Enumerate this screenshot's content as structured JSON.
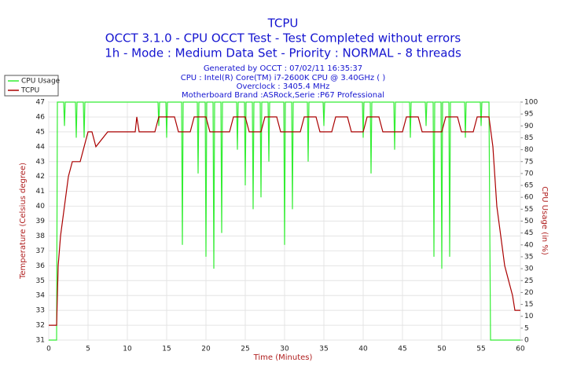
{
  "chart_data": {
    "type": "line",
    "title": "TCPU",
    "subtitle": "OCCT 3.1.0 - CPU OCCT Test - Test Completed without errors",
    "subtitle2": "1h - Mode : Medium Data Set - Priority : NORMAL - 8 threads",
    "info": [
      "Generated by OCCT : 07/02/11 16:35:37",
      "CPU : Intel(R) Core(TM) i7-2600K CPU @ 3.40GHz (  )",
      "Overclock : 3405.4 MHz",
      "Motherboard Brand :ASRock,Serie :P67 Professional"
    ],
    "xlabel": "Time (Minutes)",
    "ylabel": "Temperature (Celsius degree)",
    "y2label": "CPU Usage (in %)",
    "xlim": [
      0,
      60
    ],
    "xticks": [
      0,
      5,
      10,
      15,
      20,
      25,
      30,
      35,
      40,
      45,
      50,
      55,
      60
    ],
    "ylim": [
      31,
      47
    ],
    "yticks": [
      31,
      32,
      33,
      34,
      35,
      36,
      37,
      38,
      39,
      40,
      41,
      42,
      43,
      44,
      45,
      46,
      47
    ],
    "y2lim": [
      0,
      100
    ],
    "y2ticks": [
      0,
      5,
      10,
      15,
      20,
      25,
      30,
      35,
      40,
      45,
      50,
      55,
      60,
      65,
      70,
      75,
      80,
      85,
      90,
      95,
      100
    ],
    "grid": true,
    "legend": "top-left",
    "series": [
      {
        "name": "CPU Usage",
        "color": "#33ee33",
        "axis": "y2",
        "x": [
          0,
          1,
          1.1,
          1.9,
          2,
          2.1,
          3.4,
          3.5,
          3.6,
          4.4,
          4.5,
          4.6,
          13.9,
          14,
          14.1,
          14.9,
          15,
          15.1,
          16.9,
          17,
          17.1,
          18.9,
          19,
          19.1,
          19.9,
          20,
          20.1,
          20.9,
          21,
          21.1,
          21.9,
          22,
          22.1,
          23.9,
          24,
          24.1,
          24.9,
          25,
          25.1,
          25.9,
          26,
          26.1,
          26.9,
          27,
          27.1,
          27.9,
          28,
          28.1,
          29.9,
          30,
          30.1,
          30.9,
          31,
          31.1,
          32.9,
          33,
          33.1,
          34.9,
          35,
          35.1,
          39.9,
          40,
          40.1,
          40.9,
          41,
          41.1,
          43.9,
          44,
          44.1,
          45.9,
          46,
          46.1,
          47.9,
          48,
          48.1,
          48.9,
          49,
          49.1,
          49.9,
          50,
          50.1,
          50.9,
          51,
          51.1,
          52.9,
          53,
          53.1,
          54.9,
          55,
          55.1,
          56,
          56.2,
          60
        ],
        "values": [
          0,
          0,
          100,
          100,
          90,
          100,
          100,
          85,
          100,
          100,
          85,
          100,
          100,
          90,
          100,
          100,
          85,
          100,
          100,
          40,
          100,
          100,
          70,
          100,
          100,
          35,
          100,
          100,
          30,
          100,
          100,
          45,
          100,
          100,
          80,
          100,
          100,
          65,
          100,
          100,
          55,
          100,
          100,
          60,
          100,
          100,
          75,
          100,
          100,
          40,
          100,
          100,
          55,
          100,
          100,
          75,
          100,
          100,
          90,
          100,
          100,
          85,
          100,
          100,
          70,
          100,
          100,
          80,
          100,
          100,
          85,
          100,
          100,
          90,
          100,
          100,
          35,
          100,
          100,
          30,
          100,
          100,
          35,
          100,
          100,
          85,
          100,
          100,
          90,
          100,
          100,
          0,
          0
        ]
      },
      {
        "name": "TCPU",
        "color": "#aa0000",
        "x": [
          0,
          1,
          1.2,
          1.5,
          2,
          2.5,
          3,
          4,
          4.5,
          5,
          5.5,
          6,
          7.5,
          8,
          11,
          11.2,
          11.5,
          13.5,
          14,
          16,
          16.5,
          18,
          18.5,
          20,
          20.5,
          23,
          23.5,
          25,
          25.5,
          27,
          27.5,
          29,
          29.5,
          32,
          32.5,
          34,
          34.5,
          36,
          36.5,
          38,
          38.5,
          40,
          40.5,
          42,
          42.5,
          45,
          45.5,
          47,
          47.5,
          50,
          50.5,
          52,
          52.5,
          54,
          54.5,
          56,
          56.5,
          57,
          57.5,
          58,
          58.5,
          59,
          59.3,
          60
        ],
        "values": [
          32,
          32,
          36,
          38,
          40,
          42,
          43,
          43,
          44,
          45,
          45,
          44,
          45,
          45,
          45,
          46,
          45,
          45,
          46,
          46,
          45,
          45,
          46,
          46,
          45,
          45,
          46,
          46,
          45,
          45,
          46,
          46,
          45,
          45,
          46,
          46,
          45,
          45,
          46,
          46,
          45,
          45,
          46,
          46,
          45,
          45,
          46,
          46,
          45,
          45,
          46,
          46,
          45,
          45,
          46,
          46,
          44,
          40,
          38,
          36,
          35,
          34,
          33,
          33
        ]
      }
    ]
  }
}
